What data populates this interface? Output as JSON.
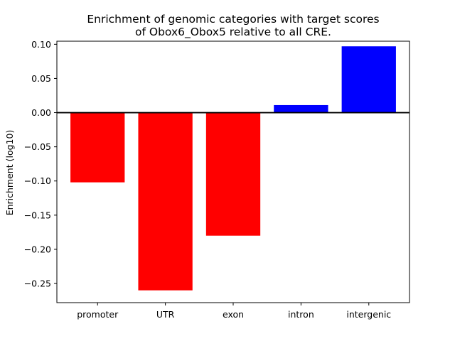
{
  "chart_data": {
    "type": "bar",
    "title": [
      "Enrichment of genomic categories with target scores",
      "of Obox6_Obox5 relative to all CRE."
    ],
    "xlabel": "",
    "ylabel": "Enrichment (log10)",
    "categories": [
      "promoter",
      "UTR",
      "exon",
      "intron",
      "intergenic"
    ],
    "values": [
      -0.102,
      -0.26,
      -0.18,
      0.011,
      0.097
    ],
    "bar_colors": [
      "#ff0000",
      "#ff0000",
      "#ff0000",
      "#0000ff",
      "#0000ff"
    ],
    "ylim": [
      -0.278,
      0.1045
    ],
    "yticks": [
      0.1,
      0.05,
      0.0,
      -0.05,
      -0.1,
      -0.15,
      -0.2,
      -0.25
    ],
    "ytick_labels": [
      "0.10",
      "0.05",
      "0.00",
      "−0.05",
      "−0.10",
      "−0.15",
      "−0.20",
      "−0.25"
    ],
    "zero_line": true,
    "grid": false
  }
}
